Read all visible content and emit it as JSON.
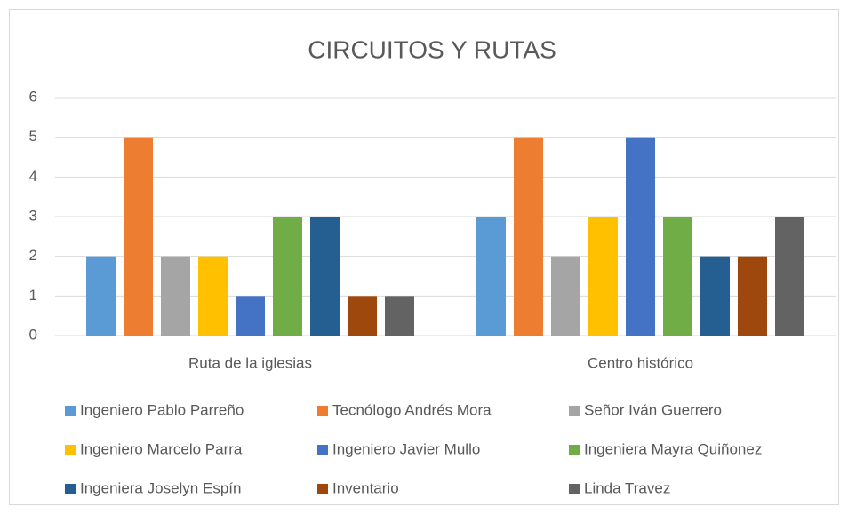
{
  "chart_data": {
    "type": "bar",
    "title": "CIRCUITOS Y RUTAS",
    "categories": [
      "Ruta de la iglesias",
      "Centro histórico"
    ],
    "series": [
      {
        "name": "Ingeniero Pablo Parreño",
        "color": "#5b9bd5",
        "values": [
          2,
          3
        ]
      },
      {
        "name": "Tecnólogo Andrés Mora",
        "color": "#ed7d31",
        "values": [
          5,
          5
        ]
      },
      {
        "name": "Señor Iván Guerrero",
        "color": "#a5a5a5",
        "values": [
          2,
          2
        ]
      },
      {
        "name": "Ingeniero Marcelo Parra",
        "color": "#ffc000",
        "values": [
          2,
          3
        ]
      },
      {
        "name": "Ingeniero Javier Mullo",
        "color": "#4472c4",
        "values": [
          1,
          5
        ]
      },
      {
        "name": "Ingeniera Mayra Quiñonez",
        "color": "#70ad47",
        "values": [
          3,
          3
        ]
      },
      {
        "name": "Ingeniera Joselyn Espín",
        "color": "#255e91",
        "values": [
          3,
          2
        ]
      },
      {
        "name": "Inventario",
        "color": "#9e480e",
        "values": [
          1,
          2
        ]
      },
      {
        "name": "Linda Travez",
        "color": "#636363",
        "values": [
          1,
          3
        ]
      }
    ],
    "ylim": [
      0,
      6
    ],
    "yticks": [
      0,
      1,
      2,
      3,
      4,
      5,
      6
    ],
    "grid": true,
    "legend": "bottom"
  }
}
